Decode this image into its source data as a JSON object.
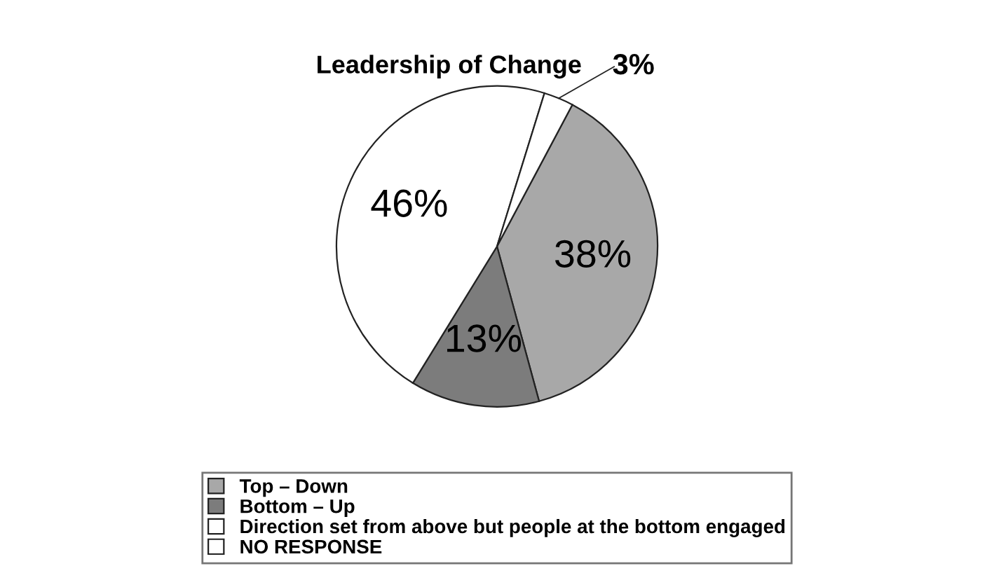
{
  "chart_data": {
    "type": "pie",
    "title": "Leadership of Change",
    "categories": [
      "Top – Down",
      "Bottom – Up",
      "Direction set from above but people at the bottom engaged",
      "NO RESPONSE"
    ],
    "values": [
      38,
      13,
      46,
      3
    ],
    "colors": [
      "#a8a8a8",
      "#7c7c7c",
      "#ffffff",
      "#ffffff"
    ],
    "value_labels": [
      "38%",
      "13%",
      "46%",
      "3%"
    ],
    "legend": "bottom"
  }
}
